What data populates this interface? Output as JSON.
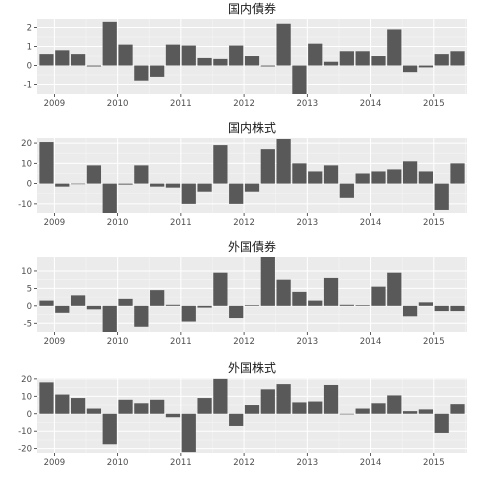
{
  "chart_data": [
    {
      "type": "bar",
      "title": "国内債券",
      "x_tick_labels": [
        "2009",
        "2010",
        "2011",
        "2012",
        "2013",
        "2014",
        "2015"
      ],
      "y_tick_labels": [
        "-1",
        "0",
        "1",
        "2"
      ],
      "y_ticks": [
        -1,
        0,
        1,
        2
      ],
      "ylim": [
        -1.5,
        2.45
      ],
      "start_quarter": "2009 Q1",
      "values": [
        0.6,
        0.8,
        0.6,
        -0.05,
        2.3,
        1.1,
        -0.8,
        -0.6,
        1.1,
        1.05,
        0.4,
        0.35,
        1.05,
        0.5,
        -0.05,
        2.2,
        -1.5,
        1.15,
        0.2,
        0.75,
        0.75,
        0.5,
        1.9,
        -0.35,
        -0.1,
        0.6,
        0.75
      ]
    },
    {
      "type": "bar",
      "title": "国内株式",
      "x_tick_labels": [
        "2009",
        "2010",
        "2011",
        "2012",
        "2013",
        "2014",
        "2015"
      ],
      "y_tick_labels": [
        "-10",
        "0",
        "10",
        "20"
      ],
      "y_ticks": [
        -10,
        0,
        10,
        20
      ],
      "ylim": [
        -14.5,
        22.5
      ],
      "start_quarter": "2009 Q1",
      "values": [
        20.5,
        -1.5,
        0,
        9,
        -14.5,
        -0.5,
        9,
        -1.5,
        -2,
        -10,
        -4,
        19,
        -10,
        -4,
        17,
        22,
        10,
        6,
        9,
        -7,
        5,
        6,
        7,
        11,
        6,
        -13,
        10
      ]
    },
    {
      "type": "bar",
      "title": "外国債券",
      "x_tick_labels": [
        "2009",
        "2010",
        "2011",
        "2012",
        "2013",
        "2014",
        "2015"
      ],
      "y_tick_labels": [
        "-5",
        "0",
        "5",
        "10"
      ],
      "y_ticks": [
        -5,
        0,
        5,
        10
      ],
      "ylim": [
        -7.5,
        14
      ],
      "start_quarter": "2009 Q1",
      "values": [
        1.5,
        -2,
        3,
        -1,
        -7.5,
        2,
        -6,
        4.5,
        0.3,
        -4.5,
        -0.5,
        9.5,
        -3.5,
        0.2,
        14,
        7.5,
        4,
        1.5,
        8,
        0.3,
        0.2,
        5.5,
        9.5,
        -3,
        1,
        -1.5,
        -1.5
      ]
    },
    {
      "type": "bar",
      "title": "外国株式",
      "x_tick_labels": [
        "2009",
        "2010",
        "2011",
        "2012",
        "2013",
        "2014",
        "2015"
      ],
      "y_tick_labels": [
        "-20",
        "-10",
        "0",
        "10",
        "20"
      ],
      "y_ticks": [
        -20,
        -10,
        0,
        10,
        20
      ],
      "ylim": [
        -22.5,
        20.5
      ],
      "start_quarter": "2009 Q1",
      "values": [
        18,
        11,
        9,
        3,
        -17.5,
        8,
        6,
        8,
        -2,
        -22,
        9,
        20,
        -7,
        5,
        14,
        17,
        6.5,
        7,
        16.5,
        0,
        3,
        6,
        10.5,
        1.5,
        2.5,
        -11,
        5.5
      ]
    }
  ]
}
